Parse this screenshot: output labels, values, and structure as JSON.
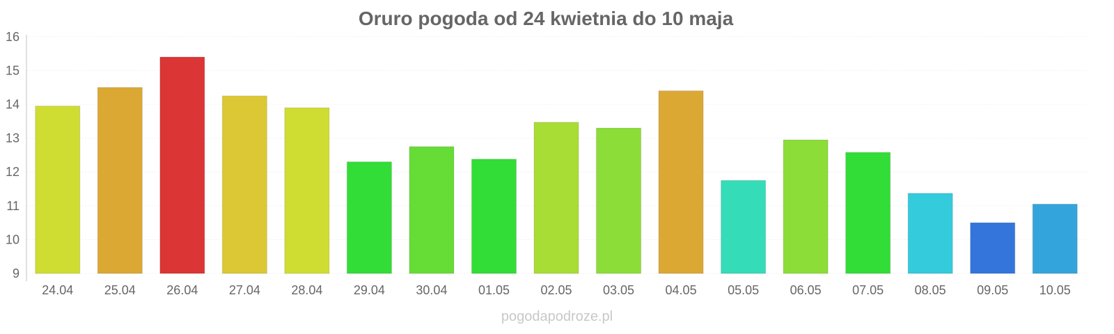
{
  "chart_data": {
    "type": "bar",
    "title": "Oruro pogoda od 24 kwietnia do 10 maja",
    "xlabel": "",
    "ylabel": "",
    "ylim": [
      9,
      16
    ],
    "yticks": [
      "9",
      "10",
      "11",
      "12",
      "13",
      "14",
      "15",
      "16"
    ],
    "grid": true,
    "categories": [
      "24.04",
      "25.04",
      "26.04",
      "27.04",
      "28.04",
      "29.04",
      "30.04",
      "01.05",
      "02.05",
      "03.05",
      "04.05",
      "05.05",
      "06.05",
      "07.05",
      "08.05",
      "09.05",
      "10.05"
    ],
    "values": [
      13.95,
      14.5,
      15.4,
      14.25,
      13.9,
      12.3,
      12.75,
      12.38,
      13.47,
      13.3,
      14.4,
      11.75,
      12.95,
      12.58,
      11.37,
      10.5,
      11.05
    ],
    "colors": [
      "#cfdd33",
      "#dca834",
      "#dc3535",
      "#dcc834",
      "#cfdd33",
      "#33dd37",
      "#66dd37",
      "#33dd37",
      "#a8dd35",
      "#8cdd37",
      "#dca834",
      "#34dcb8",
      "#8cdd37",
      "#33dd37",
      "#34cbdc",
      "#3475dc",
      "#34a5dc"
    ]
  },
  "watermark": "pogodapodroze.pl"
}
